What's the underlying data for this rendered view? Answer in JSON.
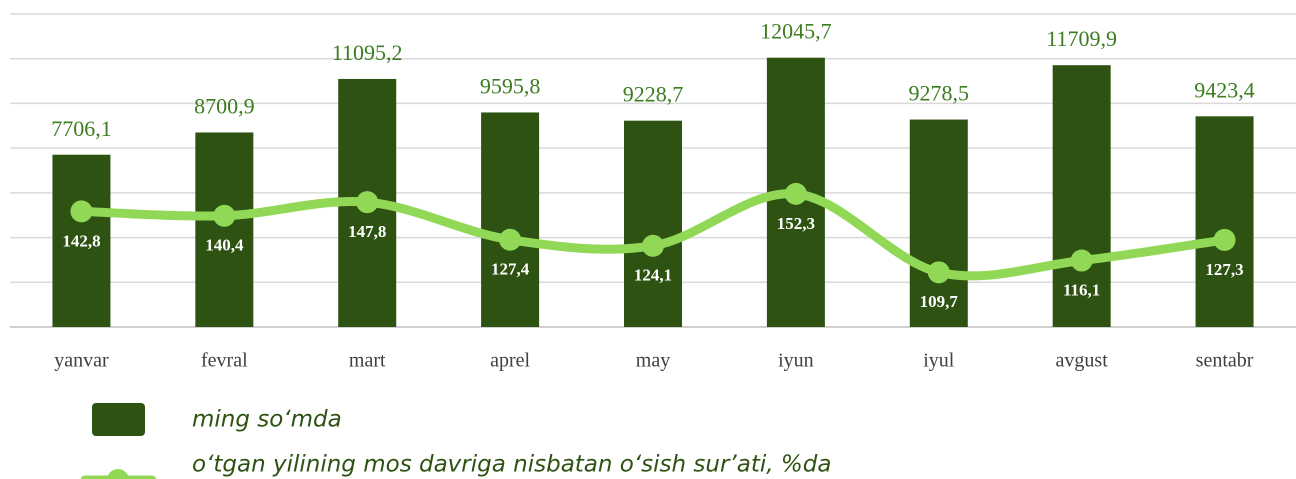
{
  "chart_data": {
    "type": "bar",
    "categories": [
      "yanvar",
      "fevral",
      "mart",
      "aprel",
      "may",
      "iyun",
      "iyul",
      "avgust",
      "sentabr"
    ],
    "series": [
      {
        "name": "ming so‘mda",
        "type": "bar",
        "color": "#2d5212",
        "values": [
          7706.1,
          8700.9,
          11095.2,
          9595.8,
          9228.7,
          12045.7,
          9278.5,
          11709.9,
          9423.4
        ],
        "value_labels": [
          "7706,1",
          "8700,9",
          "11095,2",
          "9595,8",
          "9228,7",
          "12045,7",
          "9278,5",
          "11709,9",
          "9423,4"
        ]
      },
      {
        "name": "o‘tgan yilining mos davriga nisbatan o‘sish sur’ati, %da",
        "type": "line",
        "axis": "y2",
        "color": "#92d857",
        "values": [
          142.8,
          140.4,
          147.8,
          127.4,
          124.1,
          152.3,
          109.7,
          116.1,
          127.3
        ],
        "value_labels": [
          "142,8",
          "140,4",
          "147,8",
          "127,4",
          "124,1",
          "152,3",
          "109,7",
          "116,1",
          "127,3"
        ]
      }
    ],
    "ylim": [
      0,
      14000
    ],
    "yticks": [
      0,
      2000,
      4000,
      6000,
      8000,
      10000,
      12000,
      14000
    ],
    "grid": true,
    "y2lim": [
      80,
      250
    ]
  }
}
